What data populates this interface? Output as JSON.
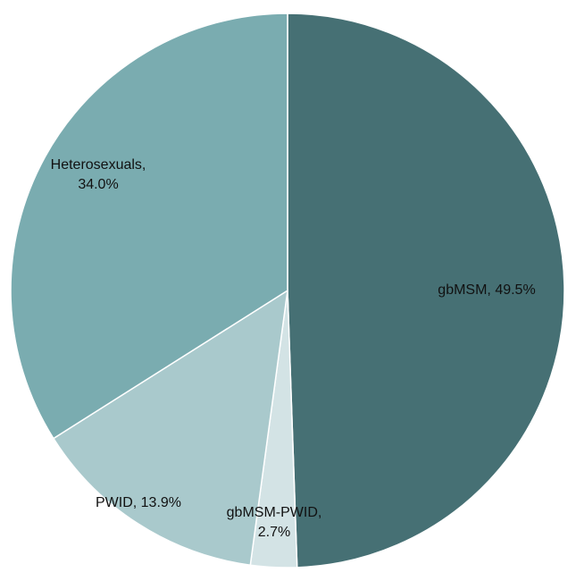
{
  "chart_data": {
    "type": "pie",
    "values": [
      49.5,
      2.7,
      13.9,
      34.0
    ],
    "value_labels": [
      [
        "gbMSM, 49.5%"
      ],
      [
        "gbMSM-PWID,",
        "2.7%"
      ],
      [
        "PWID, 13.9%"
      ],
      [
        "Heterosexuals,",
        "34.0%"
      ]
    ],
    "colors": [
      "#467074",
      "#d3e3e5",
      "#a9c9cc",
      "#7aacb0"
    ]
  }
}
